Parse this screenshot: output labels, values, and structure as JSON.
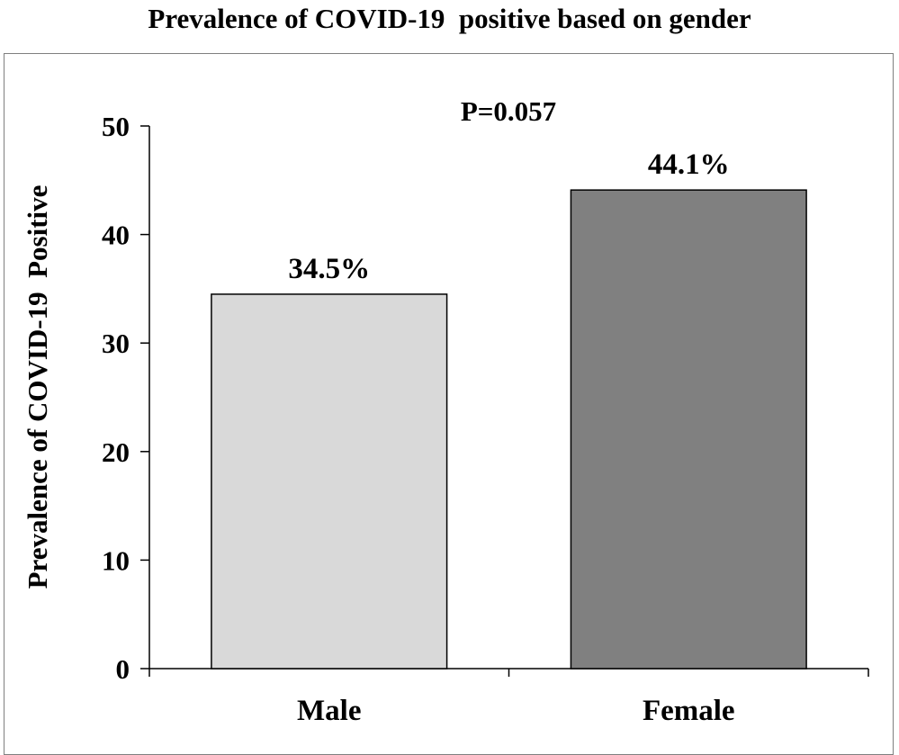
{
  "chart_data": {
    "type": "bar",
    "title": "Prevalence of COVID-19  positive based on gender",
    "ylabel": "Prevalence of COVID-19  Positive",
    "xlabel": "",
    "categories": [
      "Male",
      "Female"
    ],
    "values": [
      34.5,
      44.1
    ],
    "data_labels": [
      "34.5%",
      "44.1%"
    ],
    "bar_colors": [
      "#d9d9d9",
      "#808080"
    ],
    "bar_edge_color": "#000000",
    "ylim": [
      0,
      50
    ],
    "yticks": [
      0,
      10,
      20,
      30,
      40,
      50
    ],
    "ytick_labels": [
      "0",
      "10",
      "20",
      "30",
      "40",
      "50"
    ],
    "annotation": "P=0.057",
    "grid": false,
    "legend": "none"
  }
}
